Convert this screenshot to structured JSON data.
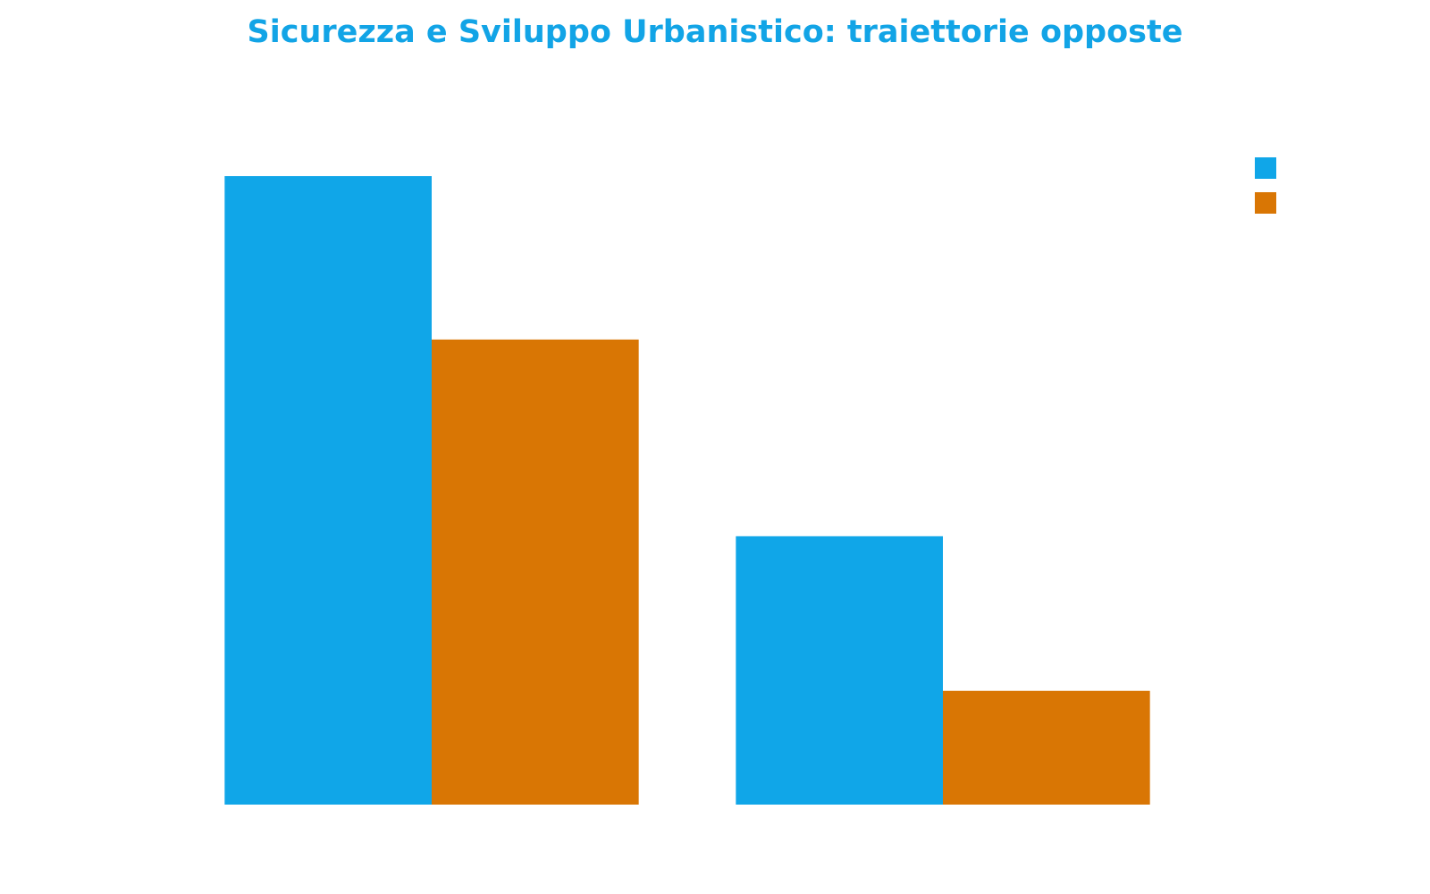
{
  "chart_data": {
    "type": "bar",
    "title": "Sicurezza e Sviluppo Urbanistico: traiettorie opposte",
    "categories": [
      null,
      null
    ],
    "series": [
      {
        "color": "#10a6e8",
        "values": [
          100,
          42.7
        ]
      },
      {
        "color": "#d97604",
        "values": [
          74,
          18.1
        ]
      }
    ],
    "ylim": [
      0,
      100
    ],
    "legend": "top-right"
  }
}
